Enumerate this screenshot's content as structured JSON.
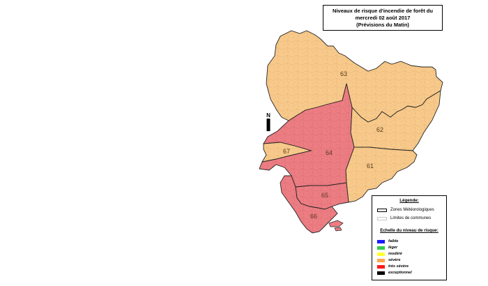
{
  "title": {
    "line1": "Niveaux de risque d'incendie de forêt du",
    "line2": "mercredi 02 août 2017",
    "line3": "(Prévisions du Matin)"
  },
  "zones": [
    {
      "id": "63",
      "level": "sévère"
    },
    {
      "id": "62",
      "level": "sévère"
    },
    {
      "id": "61",
      "level": "sévère"
    },
    {
      "id": "64",
      "level": "très sévère"
    },
    {
      "id": "65",
      "level": "très sévère"
    },
    {
      "id": "66",
      "level": "très sévère"
    },
    {
      "id": "67",
      "level": "sévère"
    }
  ],
  "north": {
    "label": "N"
  },
  "legend": {
    "heading": "Légende:",
    "zones_label": "Zones Météorologiques",
    "communes_label": "Limites de communes",
    "scale_heading": "Echelle du niveau de risque:",
    "levels": [
      {
        "label": "faible",
        "color": "#1a1aff"
      },
      {
        "label": "léger",
        "color": "#33cc4d"
      },
      {
        "label": "modéré",
        "color": "#ffff33"
      },
      {
        "label": "sévère",
        "color": "#ffa64d"
      },
      {
        "label": "très sévère",
        "color": "#ff1a1a"
      },
      {
        "label": "exceptionnel",
        "color": "#000000"
      }
    ]
  },
  "colors": {
    "severe_fill": "#f7c98a",
    "very_severe_fill": "#ec7d83",
    "zone_border": "#111111",
    "commune_border": "#c99a6a"
  }
}
